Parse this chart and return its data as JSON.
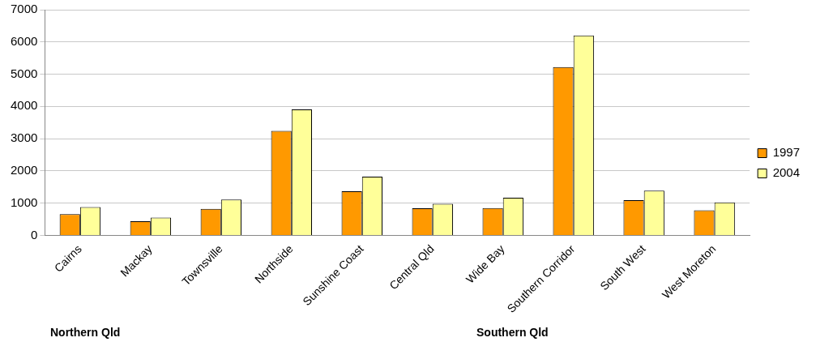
{
  "chart_data": {
    "type": "bar",
    "categories": [
      "Cairns",
      "Mackay",
      "Townsville",
      "Northside",
      "Sunshine Coast",
      "Central Qld",
      "Wide Bay",
      "Southern Corridor",
      "South West",
      "West Moreton"
    ],
    "series": [
      {
        "name": "1997",
        "color": "#ff9900",
        "values": [
          660,
          440,
          820,
          3240,
          1370,
          840,
          850,
          5220,
          1090,
          780
        ]
      },
      {
        "name": "2004",
        "color": "#ffff99",
        "values": [
          880,
          550,
          1110,
          3910,
          1820,
          980,
          1170,
          6200,
          1390,
          1020
        ]
      }
    ],
    "ylim": [
      0,
      7000
    ],
    "yticks": [
      0,
      1000,
      2000,
      3000,
      4000,
      5000,
      6000,
      7000
    ],
    "grid": "y",
    "legend": "right",
    "annotations": [
      "Northern Qld",
      "Southern Qld"
    ]
  }
}
